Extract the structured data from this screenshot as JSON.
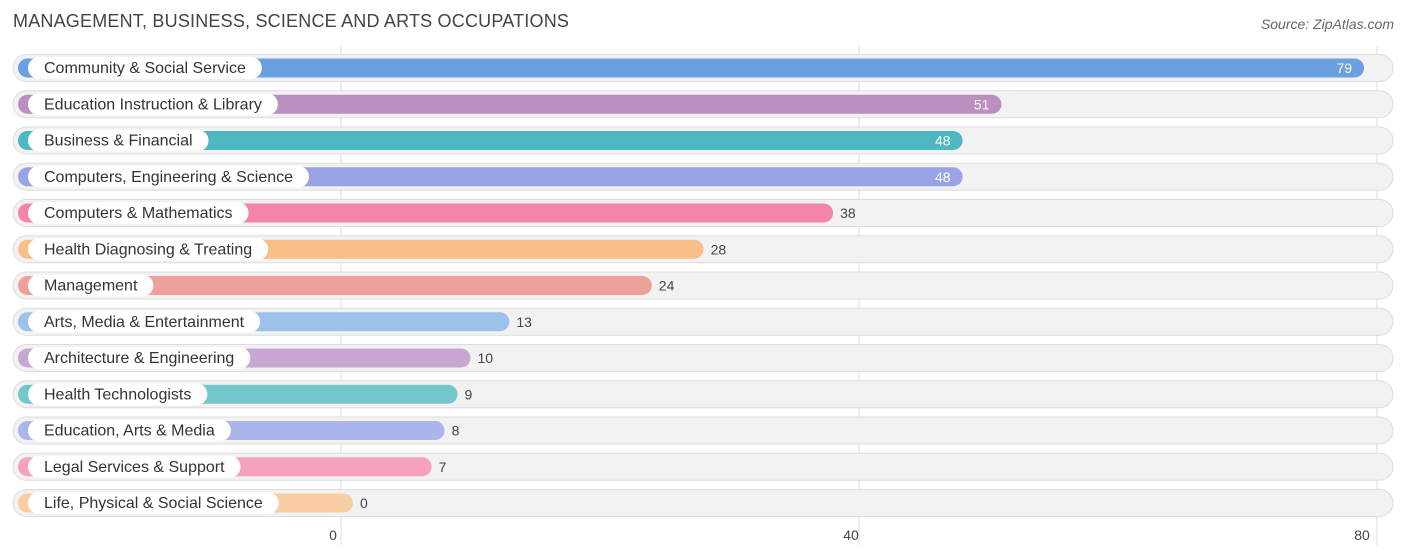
{
  "chart_data": {
    "type": "bar",
    "orientation": "horizontal",
    "title": "MANAGEMENT, BUSINESS, SCIENCE AND ARTS OCCUPATIONS",
    "source": "Source: ZipAtlas.com",
    "categories": [
      "Community & Social Service",
      "Education Instruction & Library",
      "Business & Financial",
      "Computers, Engineering & Science",
      "Computers & Mathematics",
      "Health Diagnosing & Treating",
      "Management",
      "Arts, Media & Entertainment",
      "Architecture & Engineering",
      "Health Technologists",
      "Education, Arts & Media",
      "Legal Services & Support",
      "Life, Physical & Social Science"
    ],
    "values": [
      79,
      51,
      48,
      48,
      38,
      28,
      24,
      13,
      10,
      9,
      8,
      7,
      0
    ],
    "colors": [
      "#6a9fe0",
      "#bb8fc0",
      "#4db8c0",
      "#99a4e6",
      "#f485a8",
      "#f8c088",
      "#eda19a",
      "#9dc2ea",
      "#c8a8d2",
      "#72c8cc",
      "#adb6ea",
      "#f7a2bc",
      "#f9cda2"
    ],
    "value_label_inside": [
      true,
      true,
      true,
      true,
      false,
      false,
      false,
      false,
      false,
      false,
      false,
      false,
      false
    ],
    "xlim": [
      0,
      80
    ],
    "xticks": [
      0,
      40,
      80
    ],
    "grid": true,
    "legend": "none"
  }
}
